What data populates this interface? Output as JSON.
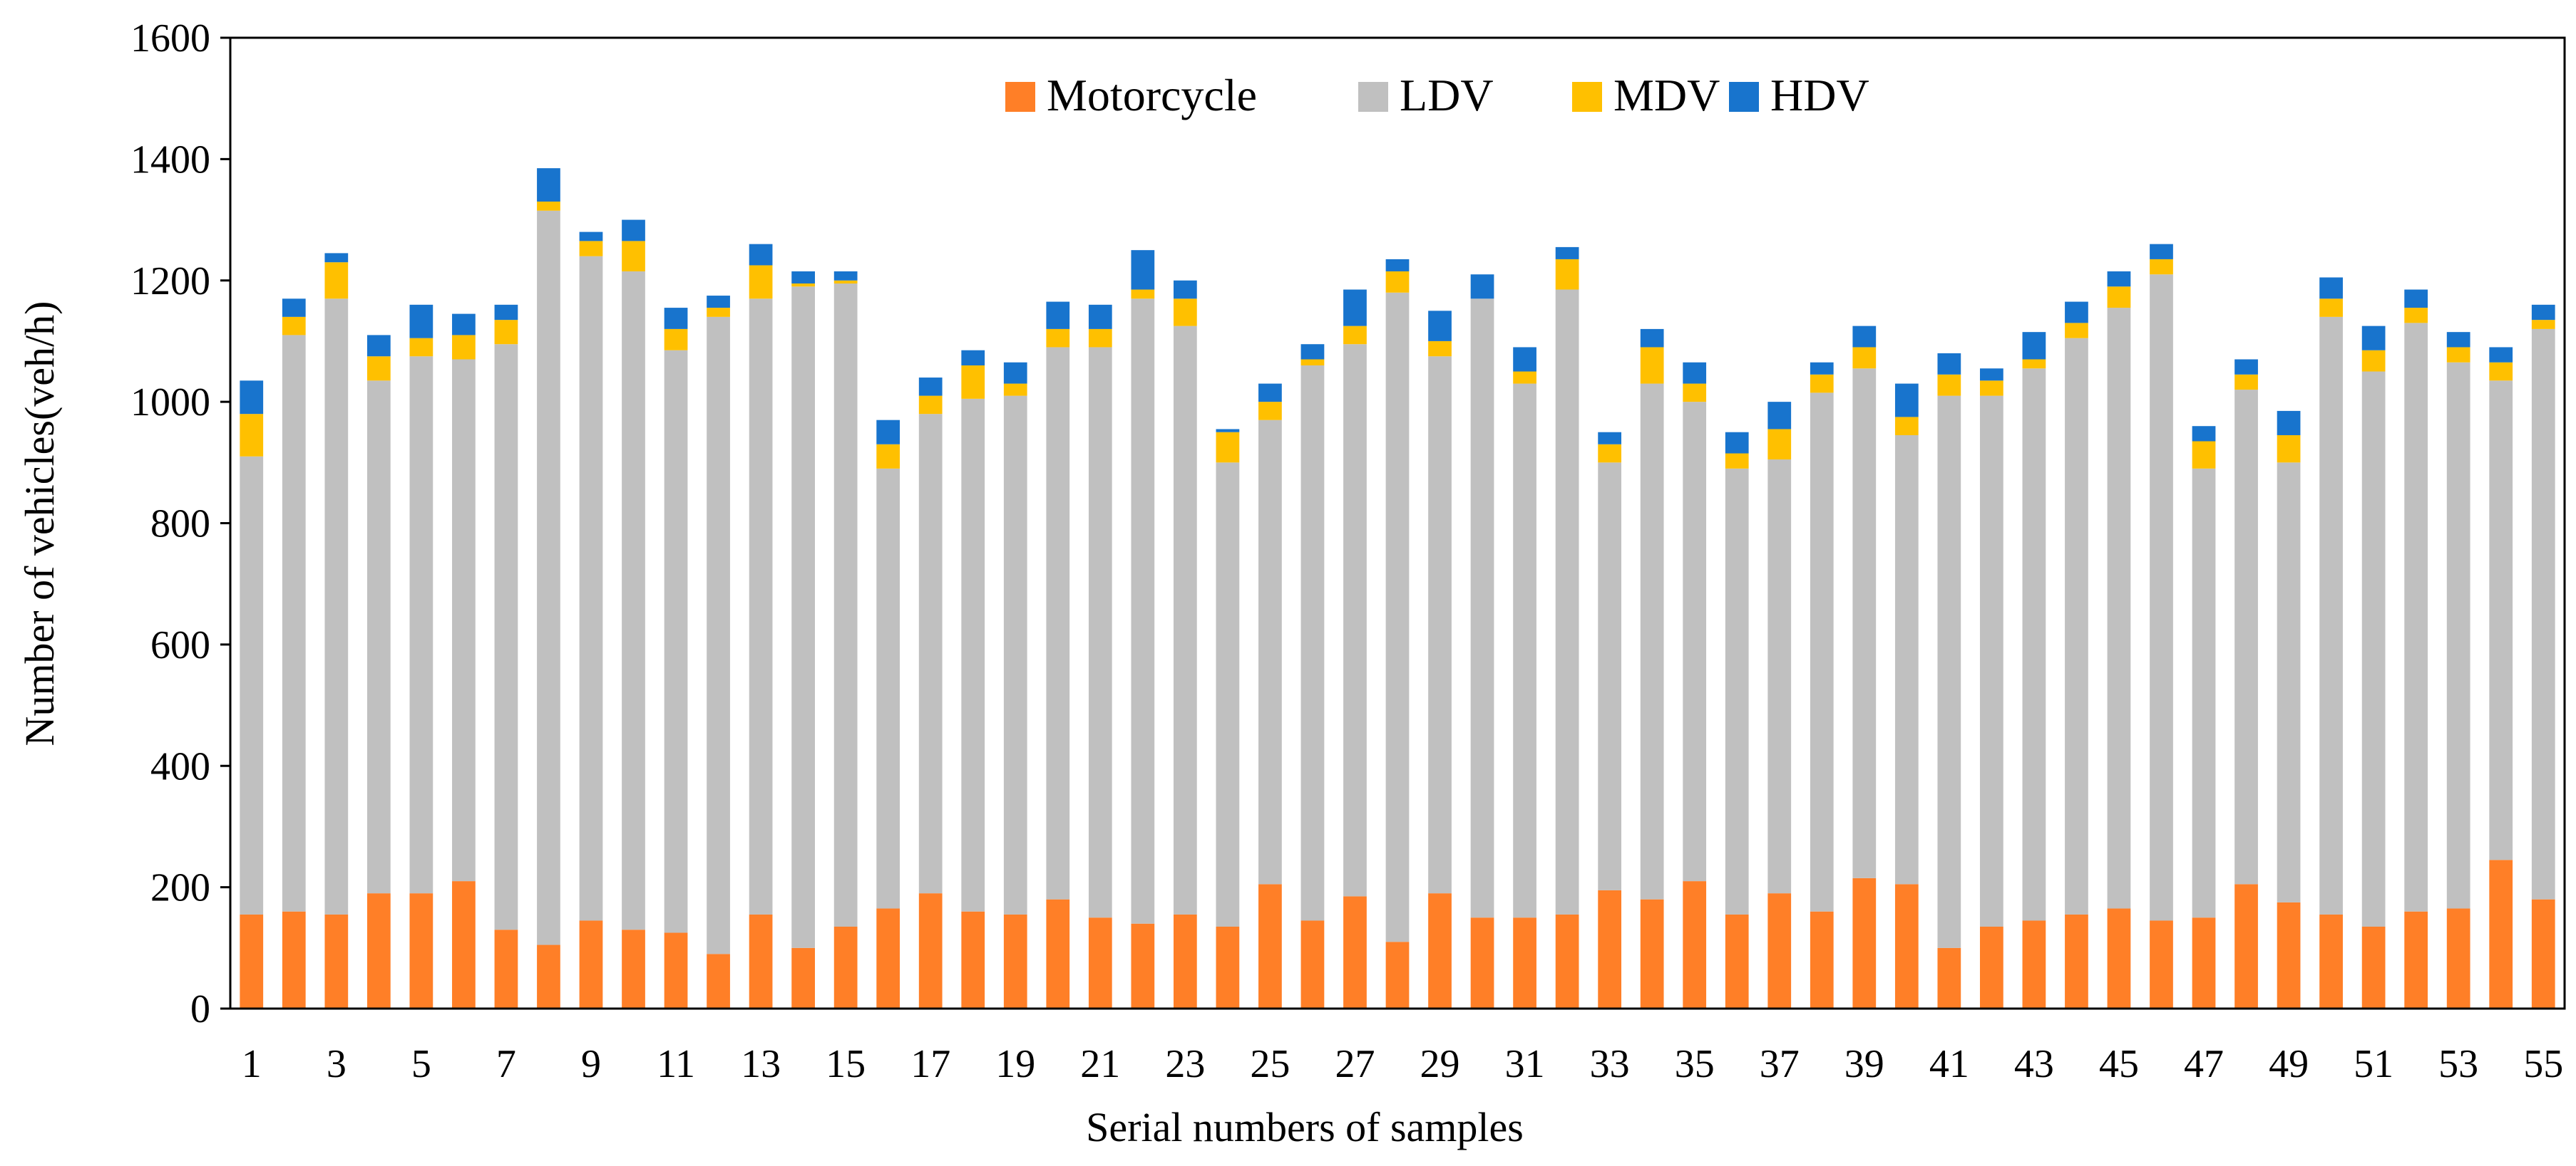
{
  "chart_data": {
    "type": "bar",
    "stacked": true,
    "title": "",
    "xlabel": "Serial numbers of samples",
    "ylabel": "Number of vehicles(veh/h)",
    "ylim": [
      0,
      1600
    ],
    "yticks": [
      0,
      200,
      400,
      600,
      800,
      1000,
      1200,
      1400,
      1600
    ],
    "yticks_text": [
      "0",
      "200",
      "400",
      "600",
      "800",
      "1000",
      "1200",
      "1400",
      "1600"
    ],
    "xtick_every": 2,
    "legend_position": "top-center",
    "grid": false,
    "categories": [
      "1",
      "2",
      "3",
      "4",
      "5",
      "6",
      "7",
      "8",
      "9",
      "10",
      "11",
      "12",
      "13",
      "14",
      "15",
      "16",
      "17",
      "18",
      "19",
      "20",
      "21",
      "22",
      "23",
      "24",
      "25",
      "26",
      "27",
      "28",
      "29",
      "30",
      "31",
      "32",
      "33",
      "34",
      "35",
      "36",
      "37",
      "38",
      "39",
      "40",
      "41",
      "42",
      "43",
      "44",
      "45",
      "46",
      "47",
      "48",
      "49",
      "50",
      "51",
      "52",
      "53",
      "54",
      "55"
    ],
    "series": [
      {
        "name": "Motorcycle",
        "color": "#FF7F27",
        "values": [
          155,
          160,
          155,
          190,
          190,
          210,
          130,
          105,
          145,
          130,
          125,
          90,
          155,
          100,
          135,
          165,
          190,
          160,
          155,
          180,
          150,
          140,
          155,
          135,
          205,
          145,
          185,
          110,
          190,
          150,
          150,
          155,
          195,
          180,
          210,
          155,
          190,
          160,
          215,
          205,
          100,
          135,
          145,
          155,
          165,
          145,
          150,
          205,
          175,
          155,
          135,
          160,
          165,
          245,
          180
        ]
      },
      {
        "name": "LDV",
        "color": "#C0C0C0",
        "values": [
          755,
          950,
          1015,
          845,
          885,
          860,
          965,
          1210,
          1095,
          1085,
          960,
          1050,
          1015,
          1090,
          1060,
          725,
          790,
          845,
          855,
          910,
          940,
          1030,
          970,
          765,
          765,
          915,
          910,
          1070,
          885,
          1020,
          880,
          1030,
          705,
          850,
          790,
          735,
          715,
          855,
          840,
          740,
          910,
          875,
          910,
          950,
          990,
          1065,
          740,
          815,
          725,
          985,
          915,
          970,
          900,
          790,
          940
        ]
      },
      {
        "name": "MDV",
        "color": "#FFC000",
        "values": [
          70,
          30,
          60,
          40,
          30,
          40,
          40,
          15,
          25,
          50,
          35,
          15,
          55,
          5,
          5,
          40,
          30,
          55,
          20,
          30,
          30,
          15,
          45,
          50,
          30,
          10,
          30,
          35,
          25,
          0,
          20,
          50,
          30,
          60,
          30,
          25,
          50,
          30,
          35,
          30,
          35,
          25,
          15,
          25,
          35,
          25,
          45,
          25,
          45,
          30,
          35,
          25,
          25,
          30,
          15
        ]
      },
      {
        "name": "HDV",
        "color": "#1874CD",
        "values": [
          55,
          30,
          15,
          35,
          55,
          35,
          25,
          55,
          15,
          35,
          35,
          20,
          35,
          20,
          15,
          40,
          30,
          25,
          35,
          45,
          40,
          65,
          30,
          5,
          30,
          25,
          60,
          20,
          50,
          40,
          40,
          20,
          20,
          30,
          35,
          35,
          45,
          20,
          35,
          55,
          35,
          20,
          45,
          35,
          25,
          25,
          25,
          25,
          40,
          35,
          40,
          30,
          25,
          25,
          25
        ]
      }
    ]
  }
}
